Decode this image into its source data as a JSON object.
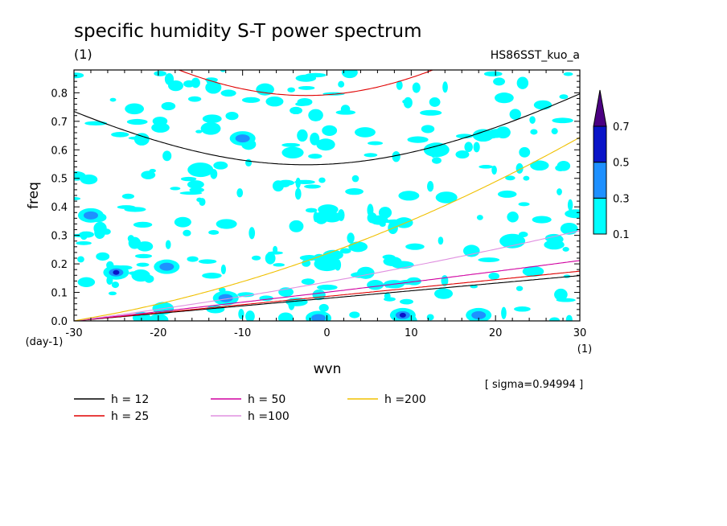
{
  "chart_data": {
    "type": "heatmap",
    "title": "specific humidity S-T power spectrum",
    "subtitle_left": "(1)",
    "subtitle_right": "HS86SST_kuo_a",
    "xlabel": "wvn",
    "ylabel": "freq",
    "x_unit": "(1)",
    "y_unit": "(day-1)",
    "xlim": [
      -30,
      30
    ],
    "ylim": [
      0.0,
      0.88
    ],
    "x_ticks": [
      "-30",
      "-20",
      "-10",
      "0",
      "10",
      "20",
      "30"
    ],
    "y_ticks": [
      "0.0",
      "0.1",
      "0.2",
      "0.3",
      "0.4",
      "0.5",
      "0.6",
      "0.7",
      "0.8"
    ],
    "sigma_text": "[ sigma=0.94994 ]",
    "colorbar": {
      "levels": [
        "0.1",
        "0.3",
        "0.5",
        "0.7"
      ],
      "colors": [
        "#00ffff",
        "#1e90ff",
        "#0a14c8",
        "#4b0082"
      ]
    },
    "contour_fill_regions": [
      {
        "x": -25,
        "y": 0.17,
        "level": 0.5
      },
      {
        "x": -19,
        "y": 0.19,
        "level": 0.3
      },
      {
        "x": -12,
        "y": 0.08,
        "level": 0.3
      },
      {
        "x": -28,
        "y": 0.37,
        "level": 0.3
      },
      {
        "x": 9,
        "y": 0.02,
        "level": 0.5
      },
      {
        "x": 18,
        "y": 0.02,
        "level": 0.3
      },
      {
        "x": -10,
        "y": 0.64,
        "level": 0.3
      },
      {
        "x": -1,
        "y": 0.01,
        "level": 0.3
      },
      {
        "x": 0,
        "y": 0.2,
        "level": 0.1
      },
      {
        "x": -15,
        "y": 0.53,
        "level": 0.1
      },
      {
        "x": 13,
        "y": 0.6,
        "level": 0.1
      },
      {
        "x": 22,
        "y": 0.28,
        "level": 0.1
      }
    ],
    "series": [
      {
        "name": "h = 12",
        "h": 12,
        "color": "#000000"
      },
      {
        "name": "h = 25",
        "h": 25,
        "color": "#e00000"
      },
      {
        "name": "h = 50",
        "h": 50,
        "color": "#d000a0"
      },
      {
        "name": "h =100",
        "h": 100,
        "color": "#e090e0"
      },
      {
        "name": "h =200",
        "h": 200,
        "color": "#f0c000"
      }
    ]
  }
}
